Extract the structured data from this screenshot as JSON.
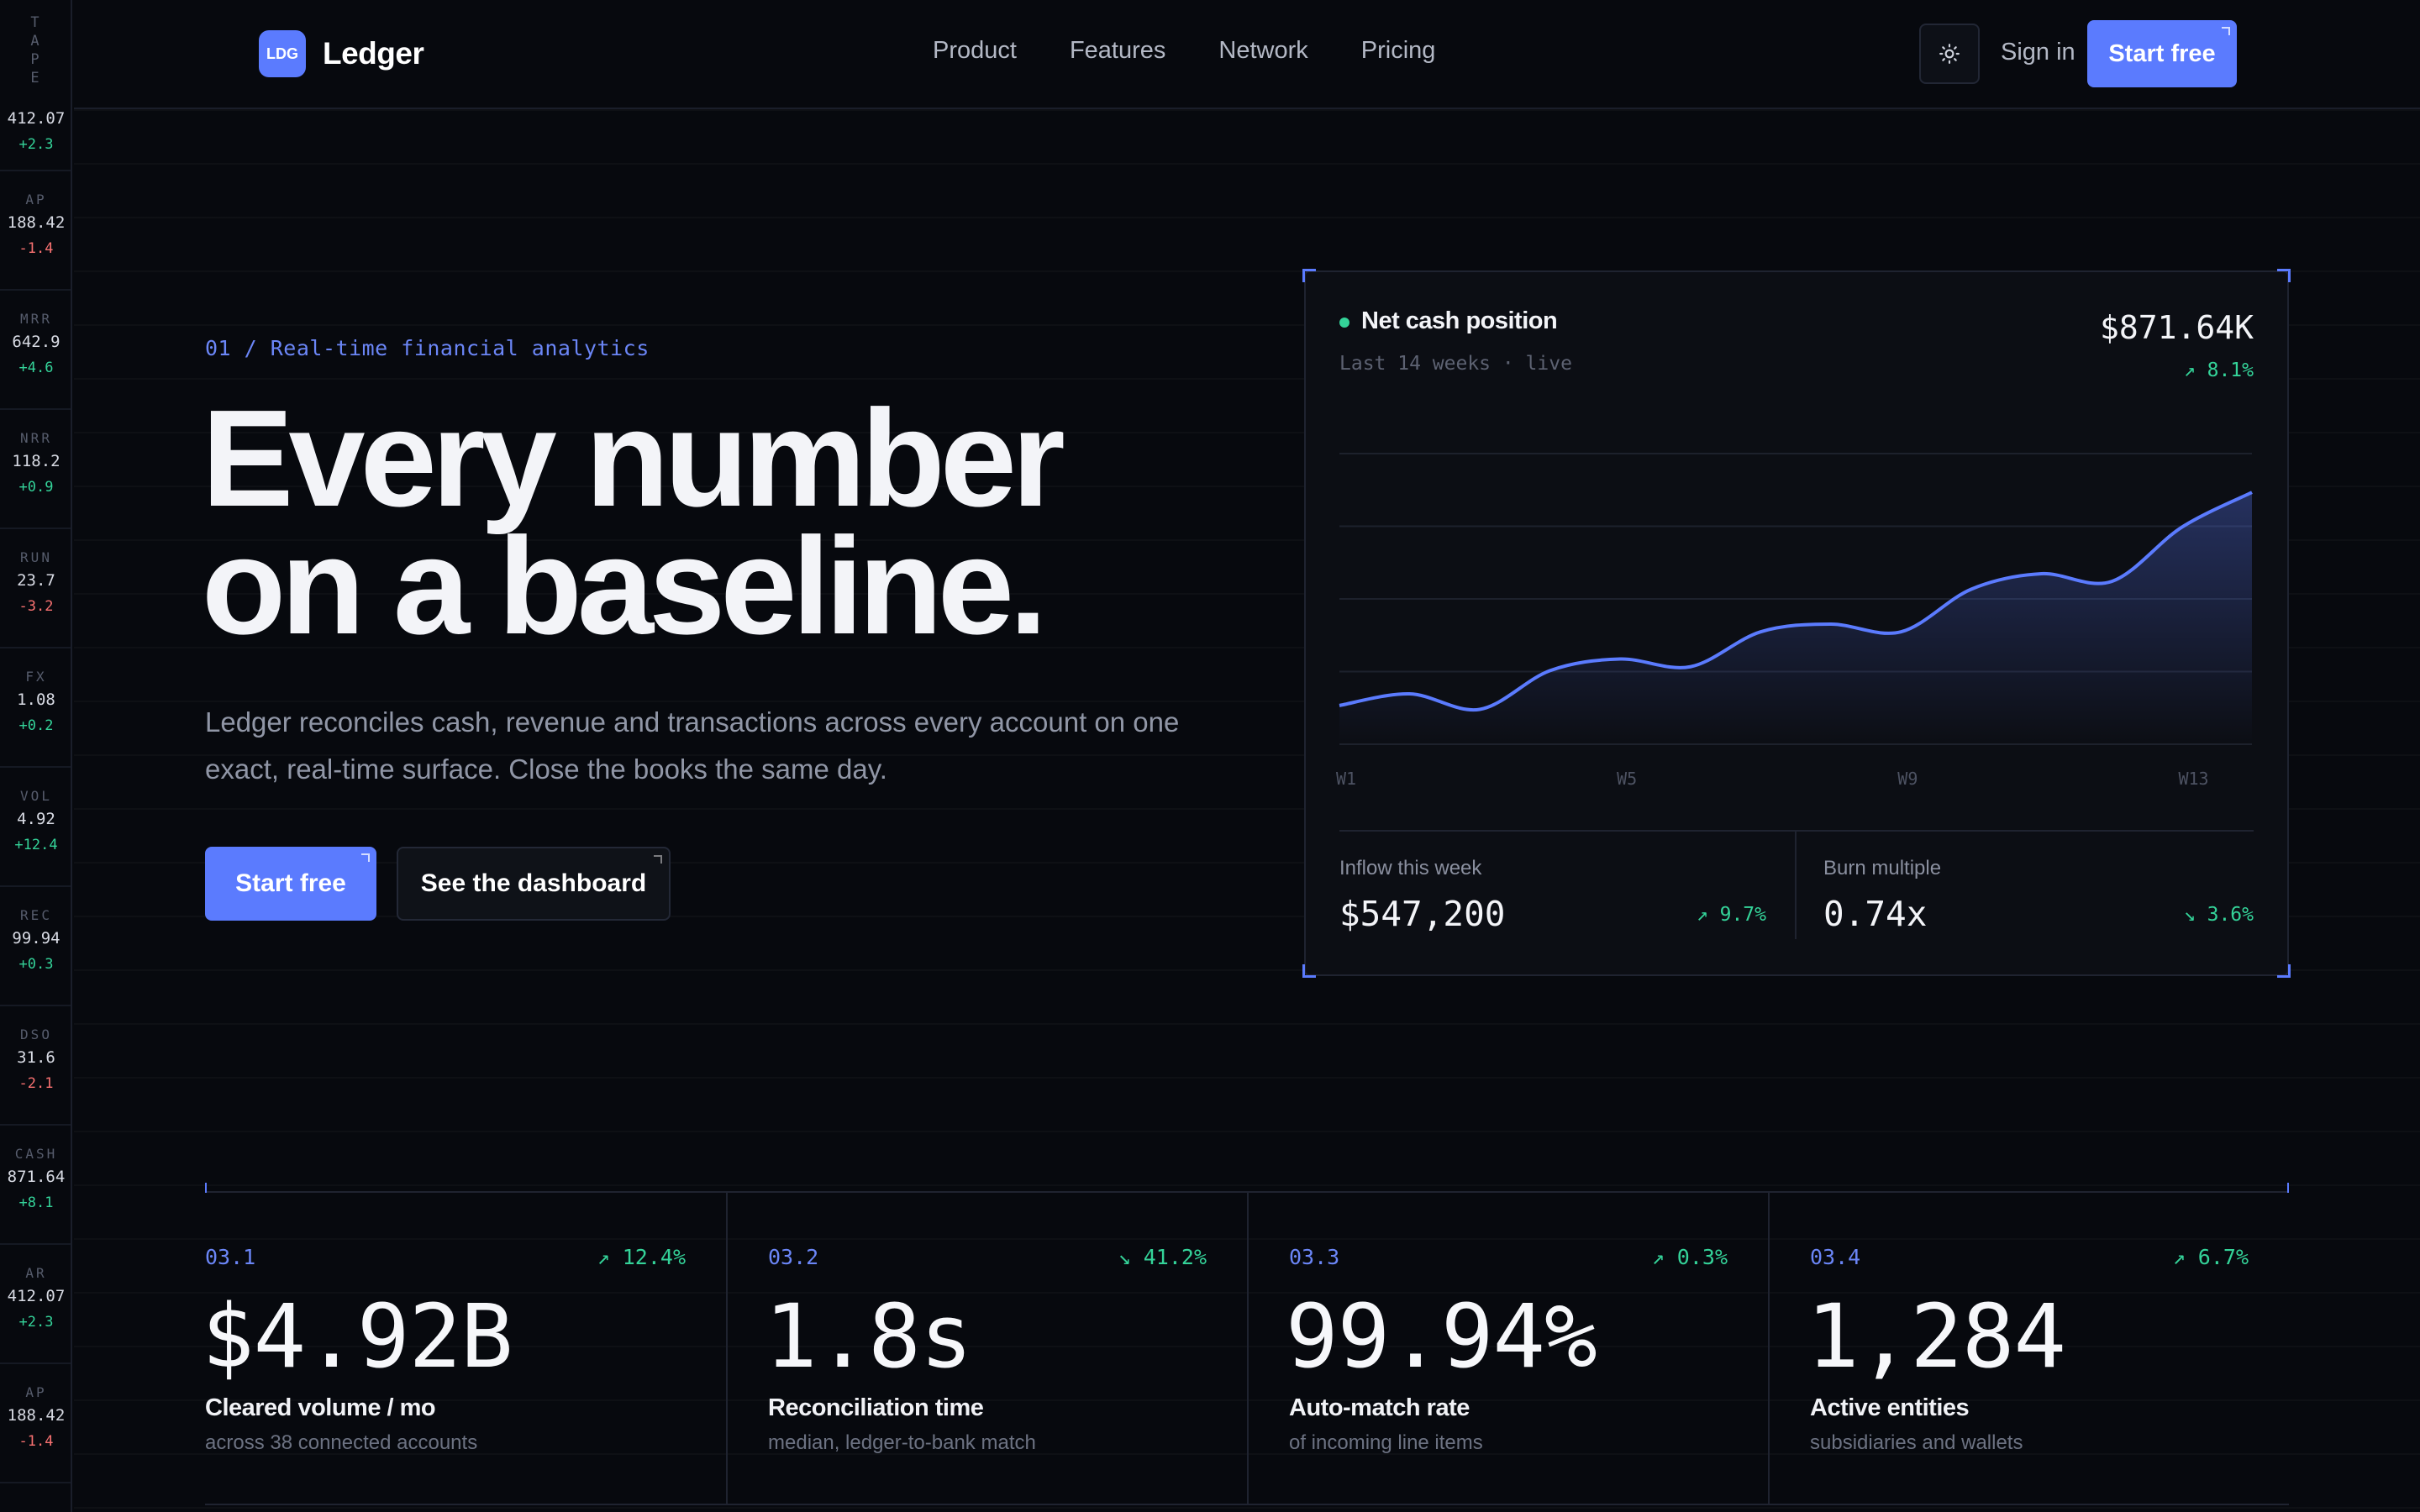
{
  "tape": {
    "title": "TAPE",
    "items": [
      {
        "key": "",
        "value": "412.07",
        "delta": "+2.3",
        "dir": "pos"
      },
      {
        "key": "AP",
        "value": "188.42",
        "delta": "-1.4",
        "dir": "neg"
      },
      {
        "key": "MRR",
        "value": "642.9",
        "delta": "+4.6",
        "dir": "pos"
      },
      {
        "key": "NRR",
        "value": "118.2",
        "delta": "+0.9",
        "dir": "pos"
      },
      {
        "key": "RUN",
        "value": "23.7",
        "delta": "-3.2",
        "dir": "neg"
      },
      {
        "key": "FX",
        "value": "1.08",
        "delta": "+0.2",
        "dir": "pos"
      },
      {
        "key": "VOL",
        "value": "4.92",
        "delta": "+12.4",
        "dir": "pos"
      },
      {
        "key": "REC",
        "value": "99.94",
        "delta": "+0.3",
        "dir": "pos"
      },
      {
        "key": "DSO",
        "value": "31.6",
        "delta": "-2.1",
        "dir": "neg"
      },
      {
        "key": "CASH",
        "value": "871.64",
        "delta": "+8.1",
        "dir": "pos"
      },
      {
        "key": "AR",
        "value": "412.07",
        "delta": "+2.3",
        "dir": "pos"
      },
      {
        "key": "AP",
        "value": "188.42",
        "delta": "-1.4",
        "dir": "neg"
      }
    ]
  },
  "nav": {
    "logo_mark": "LDG",
    "brand": "Ledger",
    "links": [
      "Product",
      "Features",
      "Network",
      "Pricing"
    ],
    "theme_icon": "sun-icon",
    "sign_in": "Sign in",
    "cta": "Start free"
  },
  "hero": {
    "eyebrow": "01 / Real-time financial analytics",
    "headline_line1": "Every number",
    "headline_line2": "on a baseline.",
    "lede": "Ledger reconciles cash, revenue and transactions across every account on one exact, real-time surface. Close the books the same day.",
    "cta_primary": "Start free",
    "cta_secondary": "See the dashboard"
  },
  "card": {
    "title": "Net cash position",
    "subtitle": "Last 14 weeks · live",
    "value": "$871.64K",
    "delta": "↗ 8.1%",
    "inflow_label": "Inflow this week",
    "inflow_value": "$547,200",
    "inflow_delta": "↗ 9.7%",
    "burn_label": "Burn multiple",
    "burn_value": "0.74x",
    "burn_delta": "↘ 3.6%"
  },
  "chart_data": {
    "type": "area",
    "title": "Net cash position",
    "x": [
      "W1",
      "W2",
      "W3",
      "W4",
      "W5",
      "W6",
      "W7",
      "W8",
      "W9",
      "W10",
      "W11",
      "W12",
      "W13",
      "W14"
    ],
    "x_tick_labels": [
      "W1",
      "W5",
      "W9",
      "W13"
    ],
    "series": [
      {
        "values": [
          0.1,
          0.13,
          0.09,
          0.19,
          0.22,
          0.2,
          0.29,
          0.31,
          0.29,
          0.4,
          0.44,
          0.42,
          0.56,
          0.65
        ]
      }
    ],
    "ylim": [
      0,
      0.75
    ],
    "gridlines": 4,
    "grid": true,
    "color": "#5b7bfe"
  },
  "stats": [
    {
      "index": "03.1",
      "delta": "↗ 12.4%",
      "value": "$4.92B",
      "label": "Cleared volume / mo",
      "sub": "across 38 connected accounts"
    },
    {
      "index": "03.2",
      "delta": "↘ 41.2%",
      "value": "1.8s",
      "label": "Reconciliation time",
      "sub": "median, ledger-to-bank match"
    },
    {
      "index": "03.3",
      "delta": "↗ 0.3%",
      "value": "99.94%",
      "label": "Auto-match rate",
      "sub": "of incoming line items"
    },
    {
      "index": "03.4",
      "delta": "↗ 6.7%",
      "value": "1,284",
      "label": "Active entities",
      "sub": "subsidiaries and wallets"
    }
  ],
  "colors": {
    "accent": "#5b7bfe",
    "positive": "#34d399",
    "negative": "#f87171",
    "background": "#07090e"
  }
}
